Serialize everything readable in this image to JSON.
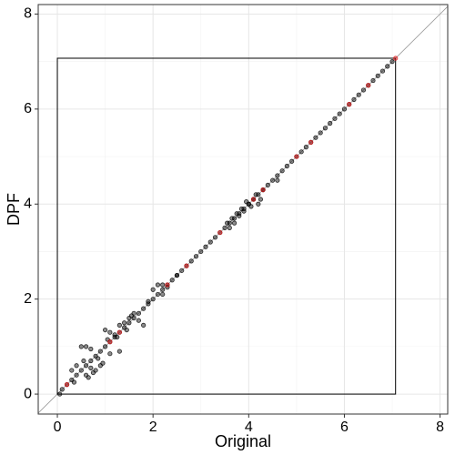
{
  "chart_data": {
    "type": "scatter",
    "x_label": "Original",
    "y_label": "DPF",
    "xlim": [
      -0.4,
      8.16
    ],
    "ylim": [
      -0.42,
      8.2
    ],
    "xticks": [
      0,
      2,
      4,
      6,
      8
    ],
    "yticks": [
      0,
      2,
      4,
      6,
      8
    ],
    "x_minor_grid": [
      1,
      3,
      5,
      7
    ],
    "y_minor_grid": [
      1,
      3,
      5,
      7
    ],
    "grid": true,
    "reference_box": {
      "x": [
        0,
        7.07
      ],
      "y": [
        0,
        7.07
      ]
    },
    "series": [
      {
        "color": "#000000",
        "x": [
          0.1,
          0.2,
          0.3,
          0.4,
          0.5,
          0.6,
          0.7,
          0.8,
          0.9,
          1.0,
          1.1,
          1.2,
          1.3,
          1.4,
          1.5,
          1.6,
          1.7,
          1.8,
          1.9,
          2.0,
          2.1,
          2.2,
          2.3,
          2.4,
          2.5,
          2.6,
          2.7,
          2.8,
          2.9,
          3.0,
          3.1,
          3.2,
          3.3,
          3.4,
          3.5,
          3.6,
          3.7,
          3.8,
          3.9,
          4.0,
          4.1,
          4.2,
          4.3,
          4.4,
          4.5,
          4.6,
          4.7,
          4.8,
          4.9,
          5.0,
          5.1,
          5.2,
          5.3,
          5.4,
          5.5,
          5.6,
          5.7,
          5.8,
          5.9,
          6.0,
          6.1,
          6.2,
          6.3,
          6.4,
          6.5,
          6.6,
          6.7,
          6.8,
          6.9,
          7.0
        ],
        "values": [
          0.1,
          0.2,
          0.3,
          0.4,
          0.5,
          0.6,
          0.7,
          0.8,
          0.9,
          1.0,
          1.1,
          1.2,
          1.3,
          1.4,
          1.5,
          1.6,
          1.7,
          1.8,
          1.9,
          2.0,
          2.1,
          2.2,
          2.3,
          2.4,
          2.5,
          2.6,
          2.7,
          2.8,
          2.9,
          3.0,
          3.1,
          3.2,
          3.3,
          3.4,
          3.5,
          3.6,
          3.7,
          3.8,
          3.9,
          4.0,
          4.1,
          4.2,
          4.3,
          4.4,
          4.5,
          4.6,
          4.7,
          4.8,
          4.9,
          5.0,
          5.1,
          5.2,
          5.3,
          5.4,
          5.5,
          5.6,
          5.7,
          5.8,
          5.9,
          6.0,
          6.1,
          6.2,
          6.3,
          6.4,
          6.5,
          6.6,
          6.7,
          6.8,
          6.9,
          7.0
        ]
      },
      {
        "color": "#000000",
        "x": [
          0.5,
          0.6,
          0.55,
          0.7,
          0.8,
          0.9,
          0.6,
          0.75,
          1.0,
          1.1,
          1.2,
          1.3,
          1.25,
          1.4,
          1.5,
          1.6,
          1.7,
          1.45,
          1.3,
          1.1,
          0.95,
          0.85,
          0.7,
          0.4,
          0.3,
          1.8,
          1.55,
          1.05,
          0.65,
          0.35,
          0.05,
          2.0,
          2.1,
          2.2,
          2.3,
          2.2,
          2.5,
          1.9,
          3.6,
          3.7,
          3.65,
          3.8,
          3.9,
          3.95,
          4.0,
          4.1,
          4.2,
          4.3,
          3.75,
          3.85,
          4.05,
          4.15,
          4.6,
          3.55,
          4.25
        ],
        "values": [
          1.0,
          1.0,
          0.7,
          0.95,
          0.5,
          0.6,
          0.4,
          0.45,
          1.35,
          1.3,
          1.25,
          1.45,
          1.2,
          1.5,
          1.6,
          1.7,
          1.55,
          1.35,
          0.9,
          0.85,
          0.65,
          0.75,
          0.55,
          0.6,
          0.5,
          1.45,
          1.65,
          1.15,
          0.35,
          0.25,
          0.0,
          2.2,
          2.3,
          2.3,
          2.25,
          2.1,
          2.5,
          1.95,
          3.5,
          3.6,
          3.7,
          3.75,
          3.85,
          4.05,
          4.0,
          4.1,
          4.0,
          4.3,
          3.8,
          3.9,
          3.95,
          4.2,
          4.5,
          3.6,
          4.1
        ]
      },
      {
        "color": "#e41a1c",
        "x": [
          0.2,
          1.1,
          1.3,
          2.3,
          2.7,
          3.4,
          4.1,
          4.3,
          5.0,
          5.3,
          6.1,
          6.5,
          7.07
        ],
        "values": [
          0.2,
          1.1,
          1.3,
          2.3,
          2.7,
          3.4,
          4.1,
          4.3,
          5.0,
          5.3,
          6.1,
          6.5,
          7.07
        ]
      }
    ]
  }
}
